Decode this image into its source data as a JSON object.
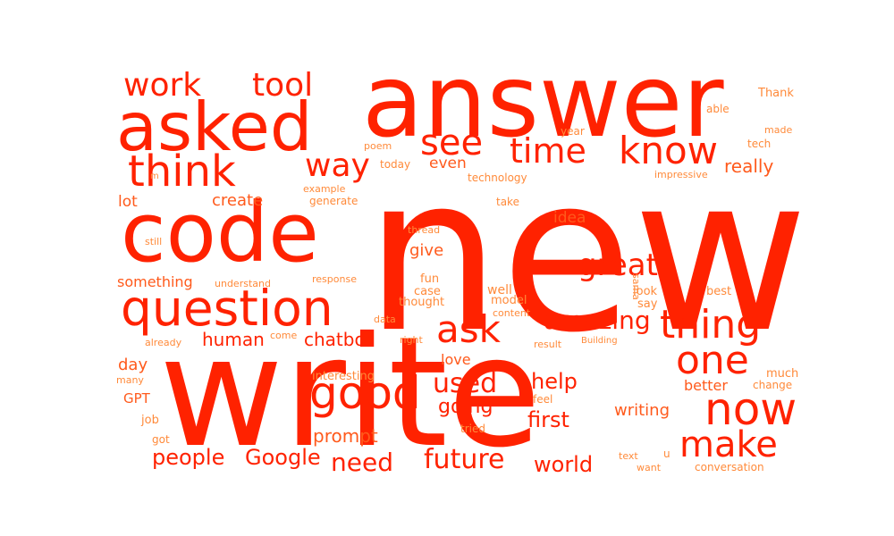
{
  "colors": {
    "background": "#ffffff",
    "primary": "#ff2200",
    "mid": "#ff5a1c",
    "light": "#ff8a3a"
  },
  "words": [
    {
      "text": "new",
      "color": "#ff2200"
    },
    {
      "text": "write",
      "color": "#ff2200"
    },
    {
      "text": "answer",
      "color": "#ff2200"
    },
    {
      "text": "code",
      "color": "#ff2200"
    },
    {
      "text": "asked",
      "color": "#ff2200"
    },
    {
      "text": "question",
      "color": "#ff2200"
    },
    {
      "text": "think",
      "color": "#ff2200"
    },
    {
      "text": "now",
      "color": "#ff2200"
    },
    {
      "text": "good",
      "color": "#ff2200"
    },
    {
      "text": "know",
      "color": "#ff2200"
    },
    {
      "text": "thing",
      "color": "#ff2200"
    },
    {
      "text": "time",
      "color": "#ff2200"
    },
    {
      "text": "one",
      "color": "#ff2200"
    },
    {
      "text": "make",
      "color": "#ff2200"
    },
    {
      "text": "ask",
      "color": "#ff2200"
    },
    {
      "text": "see",
      "color": "#ff2200"
    },
    {
      "text": "way",
      "color": "#ff2200"
    },
    {
      "text": "work",
      "color": "#ff2200"
    },
    {
      "text": "tool",
      "color": "#ff2200"
    },
    {
      "text": "great",
      "color": "#ff2200"
    },
    {
      "text": "future",
      "color": "#ff2200"
    },
    {
      "text": "used",
      "color": "#ff2200"
    },
    {
      "text": "amazing",
      "color": "#ff2200"
    },
    {
      "text": "need",
      "color": "#ff2200"
    },
    {
      "text": "people",
      "color": "#ff2200"
    },
    {
      "text": "Google",
      "color": "#ff2200"
    },
    {
      "text": "world",
      "color": "#ff2200"
    },
    {
      "text": "help",
      "color": "#ff2200"
    },
    {
      "text": "first",
      "color": "#ff2200"
    },
    {
      "text": "going",
      "color": "#ff2200"
    },
    {
      "text": "human",
      "color": "#ff2200"
    },
    {
      "text": "chatbot",
      "color": "#ff2200"
    },
    {
      "text": "really",
      "color": "#ff5a1c"
    },
    {
      "text": "even",
      "color": "#ff5a1c"
    },
    {
      "text": "writing",
      "color": "#ff5a1c"
    },
    {
      "text": "prompt",
      "color": "#ff5a1c"
    },
    {
      "text": "give",
      "color": "#ff5a1c"
    },
    {
      "text": "create",
      "color": "#ff5a1c"
    },
    {
      "text": "better",
      "color": "#ff5a1c"
    },
    {
      "text": "idea",
      "color": "#ff5a1c"
    },
    {
      "text": "day",
      "color": "#ff5a1c"
    },
    {
      "text": "lot",
      "color": "#ff5a1c"
    },
    {
      "text": "something",
      "color": "#ff5a1c"
    },
    {
      "text": "love",
      "color": "#ff5a1c"
    },
    {
      "text": "GPT",
      "color": "#ff5a1c"
    },
    {
      "text": "fun",
      "color": "#ff8a3a"
    },
    {
      "text": "case",
      "color": "#ff8a3a"
    },
    {
      "text": "thought",
      "color": "#ff8a3a"
    },
    {
      "text": "well",
      "color": "#ff8a3a"
    },
    {
      "text": "model",
      "color": "#ff8a3a"
    },
    {
      "text": "look",
      "color": "#ff8a3a"
    },
    {
      "text": "say",
      "color": "#ff8a3a"
    },
    {
      "text": "best",
      "color": "#ff8a3a"
    },
    {
      "text": "sama",
      "color": "#ff8a3a"
    },
    {
      "text": "interesting",
      "color": "#ff8a3a"
    },
    {
      "text": "feel",
      "color": "#ff8a3a"
    },
    {
      "text": "tried",
      "color": "#ff8a3a"
    },
    {
      "text": "job",
      "color": "#ff8a3a"
    },
    {
      "text": "got",
      "color": "#ff8a3a"
    },
    {
      "text": "many",
      "color": "#ff8a3a"
    },
    {
      "text": "much",
      "color": "#ff8a3a"
    },
    {
      "text": "change",
      "color": "#ff8a3a"
    },
    {
      "text": "text",
      "color": "#ff8a3a"
    },
    {
      "text": "u",
      "color": "#ff8a3a"
    },
    {
      "text": "want",
      "color": "#ff8a3a"
    },
    {
      "text": "conversation",
      "color": "#ff8a3a"
    },
    {
      "text": "Thank",
      "color": "#ff8a3a"
    },
    {
      "text": "able",
      "color": "#ff8a3a"
    },
    {
      "text": "made",
      "color": "#ff8a3a"
    },
    {
      "text": "tech",
      "color": "#ff8a3a"
    },
    {
      "text": "year",
      "color": "#ff8a3a"
    },
    {
      "text": "poem",
      "color": "#ff8a3a"
    },
    {
      "text": "today",
      "color": "#ff8a3a"
    },
    {
      "text": "technology",
      "color": "#ff8a3a"
    },
    {
      "text": "impressive",
      "color": "#ff8a3a"
    },
    {
      "text": "example",
      "color": "#ff8a3a"
    },
    {
      "text": "generate",
      "color": "#ff8a3a"
    },
    {
      "text": "take",
      "color": "#ff8a3a"
    },
    {
      "text": "thread",
      "color": "#ff8a3a"
    },
    {
      "text": "still",
      "color": "#ff8a3a"
    },
    {
      "text": "understand",
      "color": "#ff8a3a"
    },
    {
      "text": "response",
      "color": "#ff8a3a"
    },
    {
      "text": "data",
      "color": "#ff8a3a"
    },
    {
      "text": "content",
      "color": "#ff8a3a"
    },
    {
      "text": "already",
      "color": "#ff8a3a"
    },
    {
      "text": "come",
      "color": "#ff8a3a"
    },
    {
      "text": "right",
      "color": "#ff8a3a"
    },
    {
      "text": "result",
      "color": "#ff8a3a"
    },
    {
      "text": "Building",
      "color": "#ff8a3a"
    },
    {
      "text": "m",
      "color": "#ff8a3a"
    }
  ]
}
